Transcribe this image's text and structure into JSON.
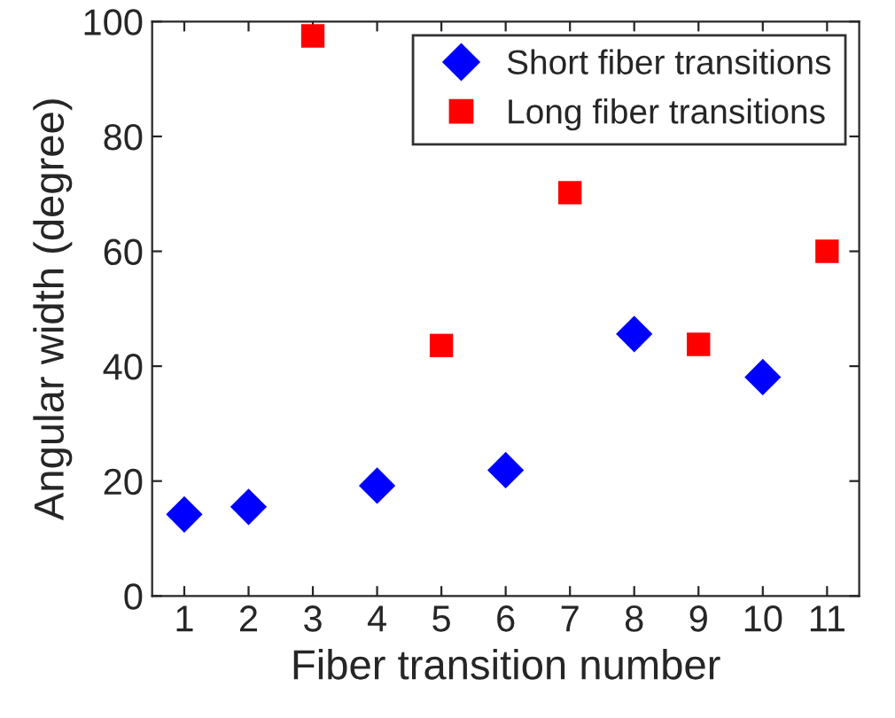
{
  "chart_data": {
    "type": "scatter",
    "xlabel": "Fiber transition number",
    "ylabel": "Angular width (degree)",
    "xlim": [
      0.5,
      11.5
    ],
    "xticks": [
      1,
      2,
      3,
      4,
      5,
      6,
      7,
      8,
      9,
      10,
      11
    ],
    "ylim": [
      0,
      100
    ],
    "yticks": [
      0,
      20,
      40,
      60,
      80,
      100
    ],
    "grid": false,
    "legend": "top right",
    "series": [
      {
        "name": "Short fiber transitions",
        "color": "#0000ff",
        "marker": "diamond",
        "x": [
          1,
          2,
          4,
          6,
          8,
          10
        ],
        "values": [
          14.2,
          15.5,
          19.2,
          21.9,
          45.6,
          38.1
        ]
      },
      {
        "name": "Long fiber transitions",
        "color": "#ff0000",
        "marker": "square",
        "x": [
          3,
          5,
          7,
          9,
          11
        ],
        "values": [
          97.5,
          43.6,
          70.2,
          43.8,
          60
        ]
      }
    ]
  }
}
